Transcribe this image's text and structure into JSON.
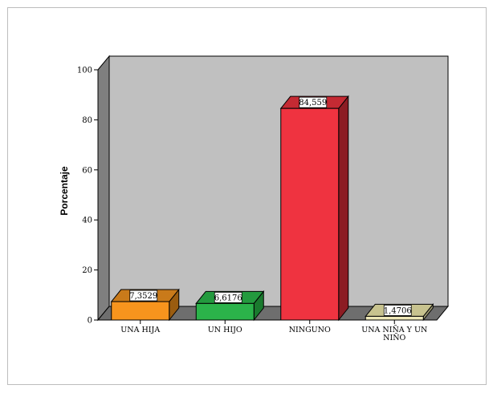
{
  "chart_data": {
    "type": "bar",
    "categories": [
      "UNA HIJA",
      "UN HIJO",
      "NINGUNO",
      "UNA NIÑA Y UN NIÑO"
    ],
    "category_lines": [
      [
        "UNA HIJA"
      ],
      [
        "UN HIJO"
      ],
      [
        "NINGUNO"
      ],
      [
        "UNA NIÑA Y UN",
        "NIÑO"
      ]
    ],
    "values": [
      7.3529,
      6.6176,
      84.559,
      1.4706
    ],
    "data_labels": [
      "7,3529",
      "6,6176",
      "84,559",
      "1,4706"
    ],
    "ylabel": "Porcentaje",
    "xlabel": "",
    "title": "",
    "ylim": [
      0,
      100
    ],
    "yticks": [
      0,
      20,
      40,
      60,
      80,
      100
    ],
    "grid": false,
    "style": "3d-bar",
    "colors": {
      "bars": [
        "#f7941d",
        "#2bb34a",
        "#ef3340",
        "#eee8b8"
      ],
      "bar_tops": [
        "#c97a1a",
        "#239a3e",
        "#c42a33",
        "#c8c38f"
      ],
      "bar_sides": [
        "#9a5c10",
        "#1a7a2e",
        "#8c1c23",
        "#9a9670"
      ],
      "back_wall": "#c0c0c0",
      "left_wall": "#7f7f7f",
      "floor": "#6e6e6e"
    }
  }
}
